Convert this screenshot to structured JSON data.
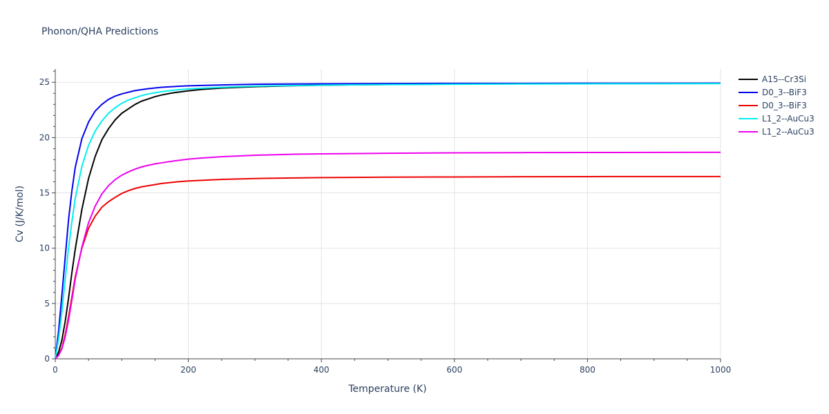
{
  "chart_data": {
    "type": "line",
    "title": "Phonon/QHA Predictions",
    "xlabel": "Temperature (K)",
    "ylabel": "Cv (J/K/mol)",
    "xlim": [
      0,
      1000
    ],
    "ylim": [
      0,
      26.2
    ],
    "x_ticks": [
      0,
      200,
      400,
      600,
      800,
      1000
    ],
    "y_ticks": [
      0,
      5,
      10,
      15,
      20,
      25
    ],
    "grid": true,
    "legend_position": "right",
    "series": [
      {
        "name": "A15--Cr3Si",
        "color": "#000000",
        "x": [
          0,
          5,
          10,
          15,
          20,
          25,
          30,
          40,
          50,
          60,
          70,
          80,
          90,
          100,
          110,
          120,
          130,
          140,
          150,
          160,
          170,
          180,
          200,
          220,
          250,
          300,
          350,
          400,
          500,
          600,
          700,
          800,
          900,
          1000
        ],
        "y": [
          0,
          0.6,
          1.7,
          3.4,
          5.5,
          7.8,
          9.9,
          13.5,
          16.3,
          18.3,
          19.8,
          20.8,
          21.6,
          22.2,
          22.6,
          23.0,
          23.3,
          23.5,
          23.7,
          23.85,
          23.97,
          24.07,
          24.23,
          24.35,
          24.48,
          24.6,
          24.68,
          24.73,
          24.8,
          24.84,
          24.86,
          24.88,
          24.89,
          24.9
        ]
      },
      {
        "name": "D0_3--BiF3",
        "color": "#0000ee",
        "x": [
          0,
          5,
          10,
          15,
          20,
          25,
          30,
          40,
          50,
          60,
          70,
          80,
          90,
          100,
          120,
          140,
          160,
          180,
          200,
          250,
          300,
          400,
          500,
          600,
          700,
          800,
          900,
          1000
        ],
        "y": [
          0,
          2.5,
          5.8,
          9.2,
          12.6,
          15.2,
          17.3,
          19.9,
          21.4,
          22.4,
          23.0,
          23.45,
          23.75,
          23.95,
          24.25,
          24.42,
          24.55,
          24.62,
          24.68,
          24.76,
          24.82,
          24.86,
          24.88,
          24.9,
          24.9,
          24.91,
          24.91,
          24.92
        ]
      },
      {
        "name": "D0_3--BiF3",
        "color": "#ee0000",
        "x": [
          0,
          5,
          10,
          15,
          20,
          25,
          30,
          40,
          50,
          60,
          70,
          80,
          90,
          100,
          110,
          120,
          130,
          140,
          150,
          160,
          180,
          200,
          250,
          300,
          400,
          500,
          600,
          700,
          800,
          900,
          1000
        ],
        "y": [
          0,
          0.3,
          1.0,
          2.2,
          3.8,
          5.6,
          7.4,
          10.0,
          11.8,
          12.9,
          13.7,
          14.2,
          14.6,
          14.95,
          15.2,
          15.4,
          15.55,
          15.65,
          15.75,
          15.85,
          15.98,
          16.08,
          16.22,
          16.3,
          16.38,
          16.42,
          16.44,
          16.46,
          16.47,
          16.48,
          16.48
        ]
      },
      {
        "name": "L1_2--AuCu3",
        "color": "#00eeee",
        "x": [
          0,
          5,
          10,
          15,
          20,
          25,
          30,
          40,
          50,
          60,
          70,
          80,
          90,
          100,
          110,
          120,
          130,
          140,
          150,
          160,
          180,
          200,
          250,
          300,
          400,
          500,
          600,
          700,
          800,
          900,
          1000
        ],
        "y": [
          0,
          1.8,
          4.3,
          7.2,
          10.0,
          12.4,
          14.5,
          17.4,
          19.3,
          20.6,
          21.5,
          22.2,
          22.7,
          23.1,
          23.4,
          23.6,
          23.8,
          23.95,
          24.05,
          24.15,
          24.3,
          24.4,
          24.55,
          24.65,
          24.74,
          24.79,
          24.82,
          24.84,
          24.86,
          24.87,
          24.88
        ]
      },
      {
        "name": "L1_2--AuCu3",
        "color": "#ee00ee",
        "x": [
          0,
          5,
          10,
          15,
          20,
          25,
          30,
          40,
          50,
          60,
          70,
          80,
          90,
          100,
          110,
          120,
          130,
          140,
          150,
          160,
          180,
          200,
          220,
          250,
          300,
          360,
          400,
          500,
          600,
          700,
          800,
          900,
          1000
        ],
        "y": [
          0,
          0.3,
          0.9,
          2.0,
          3.5,
          5.3,
          7.2,
          10.1,
          12.3,
          13.8,
          14.9,
          15.65,
          16.2,
          16.6,
          16.9,
          17.15,
          17.35,
          17.5,
          17.62,
          17.72,
          17.9,
          18.05,
          18.15,
          18.27,
          18.4,
          18.5,
          18.53,
          18.58,
          18.62,
          18.64,
          18.65,
          18.66,
          18.67
        ]
      }
    ]
  }
}
